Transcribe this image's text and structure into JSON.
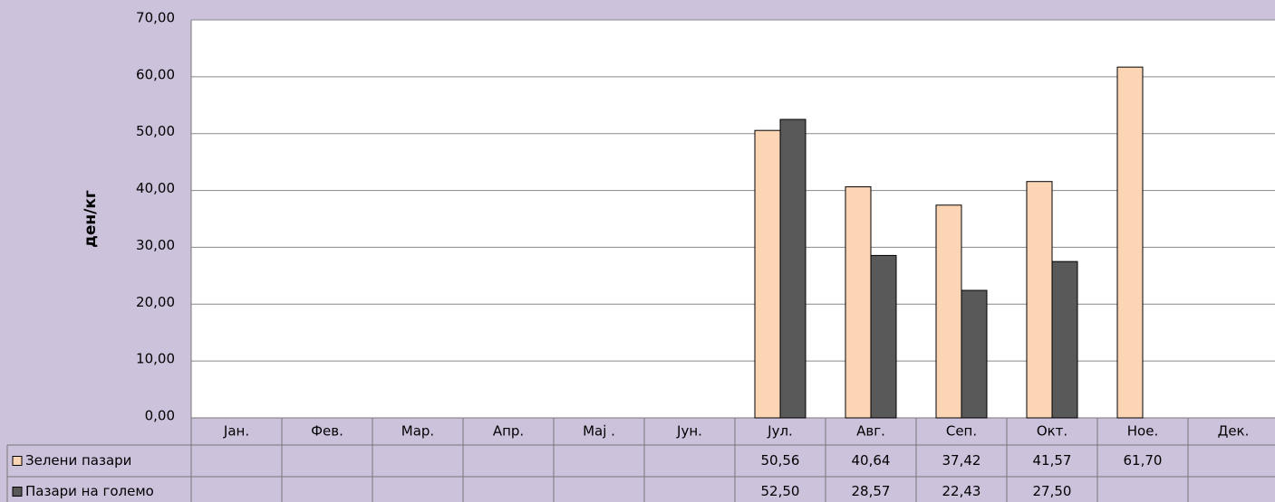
{
  "chart_data": {
    "type": "bar",
    "y_label": "ден/кг",
    "categories": [
      "Јан.",
      "Фев.",
      "Мар.",
      "Апр.",
      "Мај .",
      "Јун.",
      "Јул.",
      "Авг.",
      "Сеп.",
      "Окт.",
      "Ное.",
      "Дек."
    ],
    "series": [
      {
        "name": "Зелени пазари",
        "color": "#fcd5b4",
        "values": [
          null,
          null,
          null,
          null,
          null,
          null,
          50.56,
          40.64,
          37.42,
          41.57,
          61.7,
          null
        ],
        "value_labels": [
          null,
          null,
          null,
          null,
          null,
          null,
          "50,56",
          "40,64",
          "37,42",
          "41,57",
          "61,70",
          null
        ]
      },
      {
        "name": "Пазари на големо",
        "color": "#595959",
        "values": [
          null,
          null,
          null,
          null,
          null,
          null,
          52.5,
          28.57,
          22.43,
          27.5,
          null,
          null
        ],
        "value_labels": [
          null,
          null,
          null,
          null,
          null,
          null,
          "52,50",
          "28,57",
          "22,43",
          "27,50",
          null,
          null
        ]
      }
    ],
    "ylim": [
      0,
      70
    ],
    "yticks": [
      {
        "value": 0,
        "label": "0,00"
      },
      {
        "value": 10,
        "label": "10,00"
      },
      {
        "value": 20,
        "label": "20,00"
      },
      {
        "value": 30,
        "label": "30,00"
      },
      {
        "value": 40,
        "label": "40,00"
      },
      {
        "value": 50,
        "label": "50,00"
      },
      {
        "value": 60,
        "label": "60,00"
      },
      {
        "value": 70,
        "label": "70,00"
      }
    ],
    "grid": true
  }
}
